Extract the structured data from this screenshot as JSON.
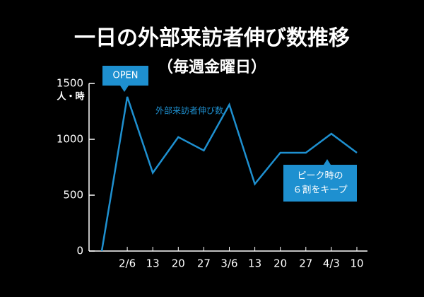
{
  "chart_data": {
    "type": "line",
    "title": "一日の外部来訪者伸び数推移",
    "subtitle": "（毎週金曜日）",
    "y_unit": "人・時",
    "categories": [
      null,
      "2/6",
      "13",
      "20",
      "27",
      "3/6",
      "13",
      "20",
      "27",
      "4/3",
      "10"
    ],
    "series": [
      {
        "name": "外部来訪者伸び数",
        "color": "#1e90d0",
        "values": [
          0,
          1380,
          700,
          1020,
          900,
          1310,
          600,
          880,
          880,
          1050,
          880
        ]
      }
    ],
    "ylim": [
      0,
      1500
    ],
    "yticks": [
      0,
      500,
      1000,
      1500
    ],
    "annotations": [
      {
        "lines": [
          "OPEN"
        ]
      },
      {
        "lines": [
          "ピーク時の",
          "６割をキープ"
        ]
      }
    ]
  }
}
